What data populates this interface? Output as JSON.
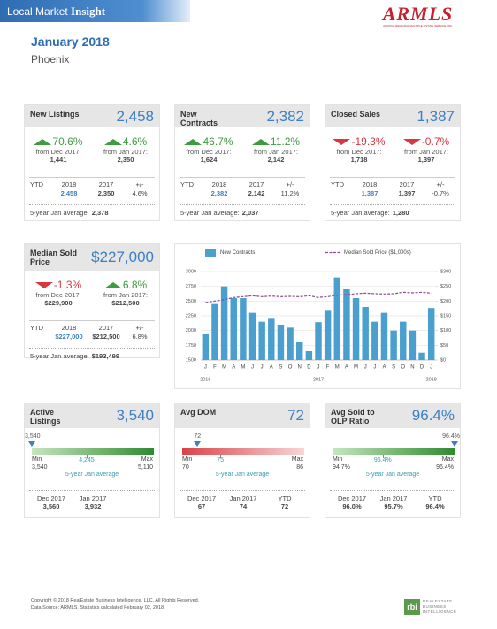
{
  "header": {
    "banner": "Local Market",
    "banner_bold": "Insight",
    "logo": "ARMLS",
    "logo_sub": "ARIZONA REGIONAL MULTIPLE LISTING SERVICE, INC.",
    "title": "January 2018",
    "subtitle": "Phoenix"
  },
  "theme": {
    "up_color": "#3f9b3f",
    "down_color": "#d9363e",
    "value_color": "#3b7fc4"
  },
  "cards": [
    {
      "label": "New Listings",
      "value": "2,458",
      "changes": [
        {
          "direction": "up",
          "pct": "70.6%",
          "from": "from Dec 2017:",
          "prior": "1,441"
        },
        {
          "direction": "up",
          "pct": "4.6%",
          "from": "from Jan 2017:",
          "prior": "2,350"
        }
      ],
      "ytd": {
        "headers": [
          "YTD",
          "2018",
          "2017",
          "+/-"
        ],
        "values": [
          "2,458",
          "2,350",
          "4.6%"
        ]
      },
      "average": {
        "label": "5-year Jan average:",
        "value": "2,378"
      }
    },
    {
      "label": "New Contracts",
      "value": "2,382",
      "changes": [
        {
          "direction": "up",
          "pct": "46.7%",
          "from": "from Dec 2017:",
          "prior": "1,624"
        },
        {
          "direction": "up",
          "pct": "11.2%",
          "from": "from Jan 2017:",
          "prior": "2,142"
        }
      ],
      "ytd": {
        "headers": [
          "YTD",
          "2018",
          "2017",
          "+/-"
        ],
        "values": [
          "2,382",
          "2,142",
          "11.2%"
        ]
      },
      "average": {
        "label": "5-year Jan average:",
        "value": "2,037"
      }
    },
    {
      "label": "Closed Sales",
      "value": "1,387",
      "changes": [
        {
          "direction": "down",
          "pct": "-19.3%",
          "from": "from Dec 2017:",
          "prior": "1,718"
        },
        {
          "direction": "down",
          "pct": "-0.7%",
          "from": "from Jan 2017:",
          "prior": "1,397"
        }
      ],
      "ytd": {
        "headers": [
          "YTD",
          "2018",
          "2017",
          "+/-"
        ],
        "values": [
          "1,387",
          "1,397",
          "-0.7%"
        ]
      },
      "average": {
        "label": "5-year Jan average:",
        "value": "1,280"
      }
    }
  ],
  "median_card": {
    "label": "Median Sold Price",
    "value": "$227,000",
    "changes": [
      {
        "direction": "down",
        "pct": "-1.3%",
        "from": "from Dec 2017:",
        "prior": "$229,900"
      },
      {
        "direction": "up",
        "pct": "6.8%",
        "from": "from Jan 2017:",
        "prior": "$212,500"
      }
    ],
    "ytd": {
      "headers": [
        "YTD",
        "2018",
        "2017",
        "+/-"
      ],
      "values": [
        "$227,000",
        "$212,500",
        "6.8%"
      ]
    },
    "average": {
      "label": "5-year Jan average:",
      "value": "$193,499"
    }
  },
  "chart_data": {
    "type": "combo",
    "categories": [
      "J",
      "F",
      "M",
      "A",
      "M",
      "J",
      "J",
      "A",
      "S",
      "O",
      "N",
      "D",
      "J",
      "F",
      "M",
      "A",
      "M",
      "J",
      "J",
      "A",
      "S",
      "O",
      "N",
      "D",
      "J"
    ],
    "year_labels": [
      "2016",
      "2017",
      "2018"
    ],
    "series": [
      {
        "name": "New Contracts",
        "kind": "bar",
        "color": "#4a9fce",
        "values": [
          1950,
          2450,
          2750,
          2550,
          2550,
          2300,
          2150,
          2200,
          2100,
          2050,
          1800,
          1650,
          2142,
          2350,
          2900,
          2700,
          2550,
          2400,
          2150,
          2300,
          2000,
          2150,
          2000,
          1624,
          2382
        ]
      },
      {
        "name": "Median Sold Price ($1,000s)",
        "kind": "line",
        "color": "#8e4a9e",
        "axis": "y2",
        "values": [
          195,
          200,
          205,
          212,
          215,
          218,
          215,
          217,
          215,
          216,
          215,
          218,
          212.5,
          215,
          220,
          222,
          225,
          227,
          225,
          224,
          225,
          230,
          228,
          229.9,
          227
        ]
      }
    ],
    "ylim": [
      1500,
      3000
    ],
    "yticks": [
      1500,
      1750,
      2000,
      2250,
      2500,
      2750,
      3000
    ],
    "y2lim": [
      0,
      300
    ],
    "y2ticks": [
      {
        "value": 0,
        "label": "$0"
      },
      {
        "value": 50,
        "label": "$50"
      },
      {
        "value": 100,
        "label": "$100"
      },
      {
        "value": 150,
        "label": "$150"
      },
      {
        "value": 200,
        "label": "$200"
      },
      {
        "value": 250,
        "label": "$250"
      },
      {
        "value": 300,
        "label": "$300"
      }
    ],
    "grid": true
  },
  "gauge_cards": [
    {
      "label": "Active Listings",
      "value": "3,540",
      "colors": [
        "#c6e6c0",
        "#2e8b2e"
      ],
      "gauge": {
        "current": "3,540",
        "min_label": "Min",
        "min": "3,540",
        "max_label": "Max",
        "max": "5,110",
        "average": "4,245",
        "average_label": "5-year Jan average"
      },
      "history": [
        {
          "label": "Dec 2017",
          "value": "3,560"
        },
        {
          "label": "Jan 2017",
          "value": "3,932"
        }
      ]
    },
    {
      "label": "Avg DOM",
      "value": "72",
      "colors": [
        "#d9434a",
        "#f8d6d6"
      ],
      "gauge": {
        "current": "72",
        "min_label": "Min",
        "min": "70",
        "max_label": "Max",
        "max": "86",
        "average": "75",
        "average_label": "5-year Jan average"
      },
      "history": [
        {
          "label": "Dec 2017",
          "value": "67"
        },
        {
          "label": "Jan 2017",
          "value": "74"
        },
        {
          "label": "YTD",
          "value": "72"
        }
      ]
    },
    {
      "label": "Avg Sold to OLP Ratio",
      "value": "96.4%",
      "colors": [
        "#c6e6c0",
        "#2e8b2e"
      ],
      "gauge": {
        "current": "96.4%",
        "min_label": "Min",
        "min": "94.7%",
        "max_label": "Max",
        "max": "96.4%",
        "average": "95.4%",
        "average_label": "5-year Jan average"
      },
      "history": [
        {
          "label": "Dec 2017",
          "value": "96.0%"
        },
        {
          "label": "Jan 2017",
          "value": "95.7%"
        },
        {
          "label": "YTD",
          "value": "96.4%"
        }
      ]
    }
  ],
  "footer": {
    "copyright": "Copyright © 2018 RealEstate Business Intelligence, LLC. All Rights Reserved.",
    "source": "Data Source: ARMLS. Statistics calculated February 02, 2018.",
    "logo": "rbi",
    "logo_text": "REALESTATE BUSINESS INTELLIGENCE"
  }
}
